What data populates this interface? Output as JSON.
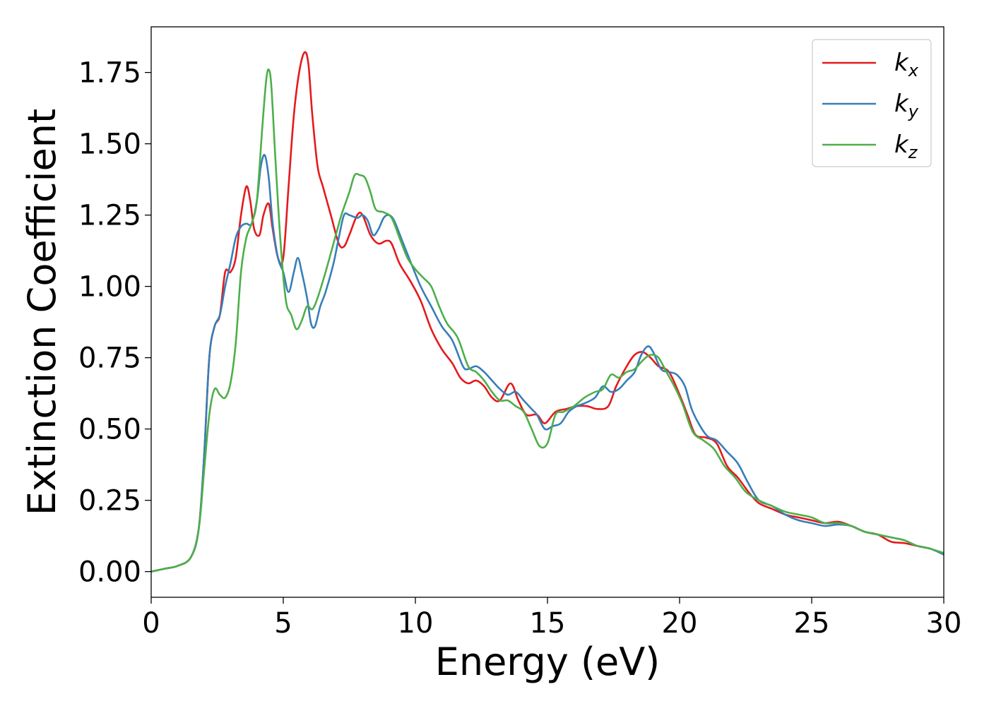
{
  "chart_data": {
    "type": "line",
    "title": "",
    "xlabel": "Energy (eV)",
    "ylabel": "Extinction Coefficient",
    "xlim": [
      0,
      30
    ],
    "ylim": [
      -0.09,
      1.91
    ],
    "xticks": [
      0,
      5,
      10,
      15,
      20,
      25,
      30
    ],
    "xtick_labels": [
      "0",
      "5",
      "10",
      "15",
      "20",
      "25",
      "30"
    ],
    "yticks": [
      0,
      0.25,
      0.5,
      0.75,
      1.0,
      1.25,
      1.5,
      1.75
    ],
    "ytick_labels": [
      "0.00",
      "0.25",
      "0.50",
      "0.75",
      "1.00",
      "1.25",
      "1.50",
      "1.75"
    ],
    "grid": false,
    "legend_position": "top-right",
    "series": [
      {
        "name": "k",
        "subscript": "x",
        "color": "#e41a1c",
        "x": [
          0,
          0.5,
          1.0,
          1.5,
          1.8,
          2.0,
          2.2,
          2.4,
          2.6,
          2.8,
          3.0,
          3.2,
          3.4,
          3.6,
          3.75,
          3.9,
          4.1,
          4.25,
          4.45,
          4.6,
          4.8,
          5.0,
          5.2,
          5.4,
          5.6,
          5.8,
          5.95,
          6.1,
          6.3,
          6.5,
          6.8,
          7.1,
          7.3,
          7.5,
          7.8,
          8.0,
          8.3,
          8.6,
          8.9,
          9.1,
          9.4,
          9.8,
          10.2,
          10.6,
          11.0,
          11.4,
          11.7,
          12.0,
          12.3,
          12.6,
          12.9,
          13.2,
          13.6,
          13.9,
          14.2,
          14.6,
          14.9,
          15.3,
          15.7,
          16.1,
          16.5,
          16.9,
          17.3,
          17.6,
          18.0,
          18.3,
          18.6,
          18.9,
          19.2,
          19.6,
          20.0,
          20.3,
          20.6,
          21.0,
          21.4,
          21.8,
          22.2,
          22.6,
          23.0,
          23.5,
          24.0,
          24.5,
          25.0,
          25.5,
          26.0,
          26.5,
          27.0,
          27.5,
          28.0,
          28.5,
          29.0,
          29.5,
          30.0
        ],
        "y": [
          0.0,
          0.01,
          0.02,
          0.05,
          0.15,
          0.4,
          0.75,
          0.86,
          0.9,
          1.05,
          1.05,
          1.1,
          1.25,
          1.35,
          1.3,
          1.2,
          1.18,
          1.25,
          1.29,
          1.2,
          1.1,
          1.1,
          1.35,
          1.6,
          1.75,
          1.82,
          1.78,
          1.6,
          1.42,
          1.35,
          1.25,
          1.15,
          1.14,
          1.18,
          1.25,
          1.25,
          1.18,
          1.15,
          1.16,
          1.15,
          1.08,
          1.02,
          0.95,
          0.85,
          0.78,
          0.73,
          0.68,
          0.66,
          0.67,
          0.65,
          0.61,
          0.6,
          0.66,
          0.6,
          0.55,
          0.55,
          0.52,
          0.56,
          0.57,
          0.58,
          0.58,
          0.57,
          0.58,
          0.65,
          0.72,
          0.76,
          0.77,
          0.75,
          0.72,
          0.7,
          0.62,
          0.55,
          0.48,
          0.47,
          0.45,
          0.37,
          0.33,
          0.28,
          0.24,
          0.22,
          0.2,
          0.19,
          0.18,
          0.17,
          0.175,
          0.16,
          0.14,
          0.13,
          0.105,
          0.1,
          0.09,
          0.08,
          0.06
        ]
      },
      {
        "name": "k",
        "subscript": "y",
        "color": "#377eb8",
        "x": [
          0,
          0.5,
          1.0,
          1.5,
          1.8,
          2.0,
          2.2,
          2.4,
          2.6,
          2.8,
          3.0,
          3.2,
          3.4,
          3.6,
          3.8,
          4.0,
          4.15,
          4.3,
          4.45,
          4.6,
          4.8,
          5.0,
          5.2,
          5.4,
          5.55,
          5.7,
          5.9,
          6.05,
          6.2,
          6.4,
          6.6,
          6.9,
          7.1,
          7.3,
          7.5,
          7.8,
          8.0,
          8.2,
          8.4,
          8.6,
          8.8,
          9.0,
          9.2,
          9.5,
          9.8,
          10.2,
          10.6,
          11.0,
          11.4,
          11.8,
          12.0,
          12.3,
          12.6,
          12.9,
          13.2,
          13.5,
          13.8,
          14.1,
          14.4,
          14.6,
          14.9,
          15.2,
          15.5,
          15.8,
          16.1,
          16.4,
          16.8,
          17.1,
          17.4,
          17.7,
          18.0,
          18.3,
          18.55,
          18.8,
          19.0,
          19.3,
          19.6,
          19.9,
          20.2,
          20.5,
          21.0,
          21.4,
          21.8,
          22.2,
          22.6,
          23.0,
          23.5,
          24.0,
          24.5,
          25.0,
          25.5,
          26.0,
          26.5,
          27.0,
          27.5,
          28.0,
          28.5,
          29.0,
          29.5,
          30.0
        ],
        "y": [
          0.0,
          0.01,
          0.02,
          0.05,
          0.15,
          0.4,
          0.75,
          0.86,
          0.9,
          1.0,
          1.08,
          1.17,
          1.21,
          1.22,
          1.22,
          1.3,
          1.42,
          1.46,
          1.38,
          1.22,
          1.1,
          1.05,
          0.98,
          1.05,
          1.1,
          1.05,
          0.96,
          0.87,
          0.86,
          0.93,
          0.98,
          1.08,
          1.17,
          1.25,
          1.25,
          1.24,
          1.25,
          1.23,
          1.18,
          1.2,
          1.24,
          1.25,
          1.23,
          1.16,
          1.09,
          1.0,
          0.93,
          0.86,
          0.81,
          0.72,
          0.71,
          0.72,
          0.7,
          0.67,
          0.64,
          0.62,
          0.63,
          0.6,
          0.57,
          0.55,
          0.5,
          0.51,
          0.52,
          0.56,
          0.58,
          0.59,
          0.61,
          0.65,
          0.63,
          0.64,
          0.67,
          0.7,
          0.76,
          0.79,
          0.77,
          0.71,
          0.7,
          0.69,
          0.65,
          0.56,
          0.48,
          0.46,
          0.42,
          0.38,
          0.31,
          0.25,
          0.23,
          0.2,
          0.18,
          0.17,
          0.16,
          0.165,
          0.16,
          0.14,
          0.13,
          0.12,
          0.11,
          0.09,
          0.08,
          0.06
        ]
      },
      {
        "name": "k",
        "subscript": "z",
        "color": "#4daf4a",
        "x": [
          0,
          0.5,
          1.0,
          1.5,
          1.8,
          2.0,
          2.2,
          2.4,
          2.6,
          2.8,
          3.0,
          3.2,
          3.4,
          3.6,
          3.8,
          4.0,
          4.2,
          4.35,
          4.45,
          4.55,
          4.7,
          4.9,
          5.1,
          5.3,
          5.5,
          5.7,
          5.9,
          6.1,
          6.3,
          6.6,
          6.9,
          7.2,
          7.5,
          7.7,
          7.9,
          8.1,
          8.3,
          8.5,
          8.8,
          9.1,
          9.4,
          9.7,
          10.0,
          10.3,
          10.6,
          10.9,
          11.2,
          11.6,
          12.0,
          12.3,
          12.6,
          12.9,
          13.2,
          13.5,
          13.8,
          14.1,
          14.4,
          14.7,
          15.0,
          15.3,
          15.6,
          16.0,
          16.4,
          16.8,
          17.1,
          17.4,
          17.7,
          18.0,
          18.3,
          18.6,
          18.9,
          19.2,
          19.5,
          19.8,
          20.1,
          20.5,
          20.9,
          21.3,
          21.7,
          22.1,
          22.5,
          23.0,
          23.5,
          24.0,
          24.5,
          25.0,
          25.5,
          26.0,
          26.5,
          27.0,
          27.5,
          28.0,
          28.5,
          29.0,
          29.5,
          30.0
        ],
        "y": [
          0.0,
          0.01,
          0.02,
          0.05,
          0.15,
          0.35,
          0.55,
          0.64,
          0.62,
          0.61,
          0.66,
          0.8,
          1.05,
          1.17,
          1.22,
          1.3,
          1.55,
          1.72,
          1.76,
          1.7,
          1.45,
          1.15,
          0.95,
          0.9,
          0.85,
          0.88,
          0.93,
          0.92,
          0.96,
          1.05,
          1.15,
          1.25,
          1.33,
          1.39,
          1.39,
          1.38,
          1.33,
          1.27,
          1.26,
          1.24,
          1.17,
          1.1,
          1.06,
          1.03,
          1.0,
          0.93,
          0.87,
          0.82,
          0.72,
          0.7,
          0.67,
          0.63,
          0.6,
          0.6,
          0.58,
          0.56,
          0.5,
          0.44,
          0.45,
          0.55,
          0.56,
          0.58,
          0.61,
          0.63,
          0.64,
          0.69,
          0.68,
          0.7,
          0.71,
          0.74,
          0.76,
          0.75,
          0.7,
          0.65,
          0.59,
          0.49,
          0.46,
          0.43,
          0.37,
          0.33,
          0.28,
          0.25,
          0.23,
          0.21,
          0.2,
          0.19,
          0.17,
          0.17,
          0.16,
          0.14,
          0.13,
          0.12,
          0.11,
          0.09,
          0.08,
          0.065
        ]
      }
    ]
  }
}
